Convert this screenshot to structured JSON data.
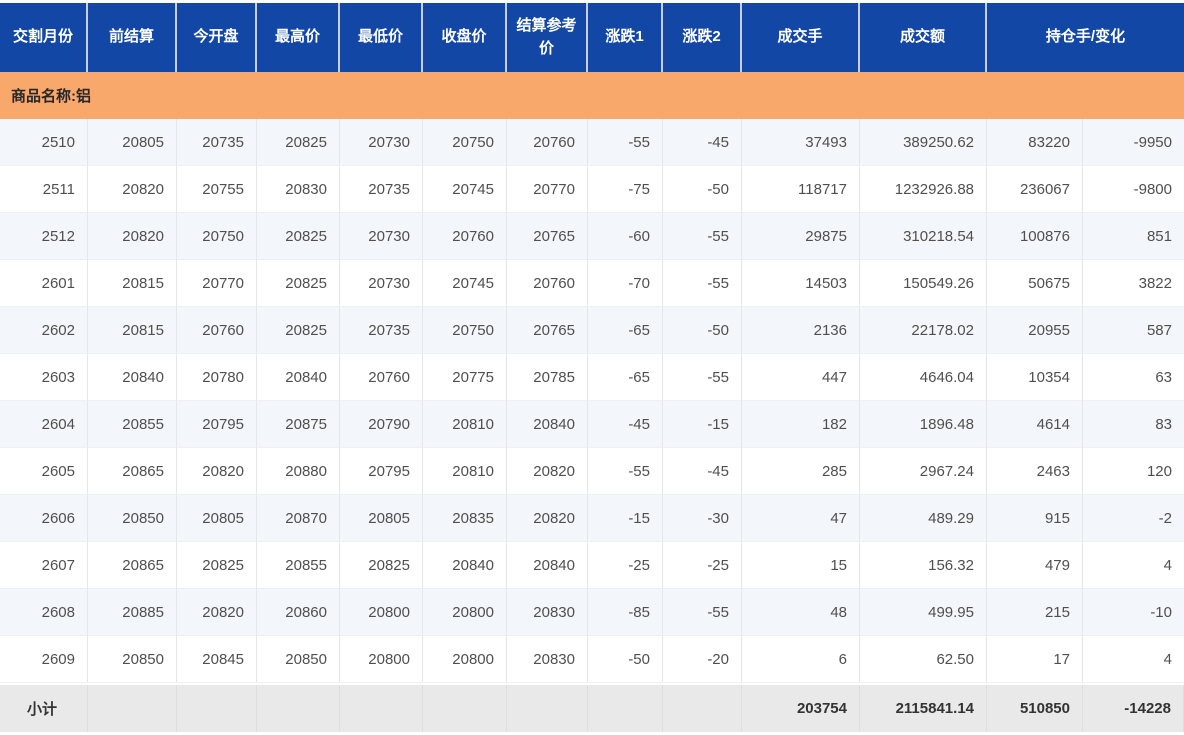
{
  "colors": {
    "header_bg": "#1347a5",
    "header_text": "#ffffff",
    "group_bg": "#f9a86c",
    "group_text": "#26272b",
    "row_alt_bg": "#f3f6fa",
    "row_bg": "#ffffff",
    "subtotal_bg": "#e9e9e9",
    "data_text": "#4f4f4f",
    "subtotal_text": "#333333"
  },
  "header": {
    "columns": [
      {
        "label": "交割月份",
        "span": 1
      },
      {
        "label": "前结算",
        "span": 1
      },
      {
        "label": "今开盘",
        "span": 1
      },
      {
        "label": "最高价",
        "span": 1
      },
      {
        "label": "最低价",
        "span": 1
      },
      {
        "label": "收盘价",
        "span": 1
      },
      {
        "label": "结算参考价",
        "span": 1
      },
      {
        "label": "涨跌1",
        "span": 1
      },
      {
        "label": "涨跌2",
        "span": 1
      },
      {
        "label": "成交手",
        "span": 1
      },
      {
        "label": "成交额",
        "span": 1
      },
      {
        "label": "持仓手/变化",
        "span": 2
      }
    ]
  },
  "group_row": {
    "label": "商品名称:铝"
  },
  "rows": [
    [
      "2510",
      "20805",
      "20735",
      "20825",
      "20730",
      "20750",
      "20760",
      "-55",
      "-45",
      "37493",
      "389250.62",
      "83220",
      "-9950"
    ],
    [
      "2511",
      "20820",
      "20755",
      "20830",
      "20735",
      "20745",
      "20770",
      "-75",
      "-50",
      "118717",
      "1232926.88",
      "236067",
      "-9800"
    ],
    [
      "2512",
      "20820",
      "20750",
      "20825",
      "20730",
      "20760",
      "20765",
      "-60",
      "-55",
      "29875",
      "310218.54",
      "100876",
      "851"
    ],
    [
      "2601",
      "20815",
      "20770",
      "20825",
      "20730",
      "20745",
      "20760",
      "-70",
      "-55",
      "14503",
      "150549.26",
      "50675",
      "3822"
    ],
    [
      "2602",
      "20815",
      "20760",
      "20825",
      "20735",
      "20750",
      "20765",
      "-65",
      "-50",
      "2136",
      "22178.02",
      "20955",
      "587"
    ],
    [
      "2603",
      "20840",
      "20780",
      "20840",
      "20760",
      "20775",
      "20785",
      "-65",
      "-55",
      "447",
      "4646.04",
      "10354",
      "63"
    ],
    [
      "2604",
      "20855",
      "20795",
      "20875",
      "20790",
      "20810",
      "20840",
      "-45",
      "-15",
      "182",
      "1896.48",
      "4614",
      "83"
    ],
    [
      "2605",
      "20865",
      "20820",
      "20880",
      "20795",
      "20810",
      "20820",
      "-55",
      "-45",
      "285",
      "2967.24",
      "2463",
      "120"
    ],
    [
      "2606",
      "20850",
      "20805",
      "20870",
      "20805",
      "20835",
      "20820",
      "-15",
      "-30",
      "47",
      "489.29",
      "915",
      "-2"
    ],
    [
      "2607",
      "20865",
      "20825",
      "20855",
      "20825",
      "20840",
      "20840",
      "-25",
      "-25",
      "15",
      "156.32",
      "479",
      "4"
    ],
    [
      "2608",
      "20885",
      "20820",
      "20860",
      "20800",
      "20800",
      "20830",
      "-85",
      "-55",
      "48",
      "499.95",
      "215",
      "-10"
    ],
    [
      "2609",
      "20850",
      "20845",
      "20850",
      "20800",
      "20800",
      "20830",
      "-50",
      "-20",
      "6",
      "62.50",
      "17",
      "4"
    ]
  ],
  "footer": {
    "cells": [
      "小计",
      "",
      "",
      "",
      "",
      "",
      "",
      "",
      "",
      "203754",
      "2115841.14",
      "510850",
      "-14228"
    ]
  }
}
